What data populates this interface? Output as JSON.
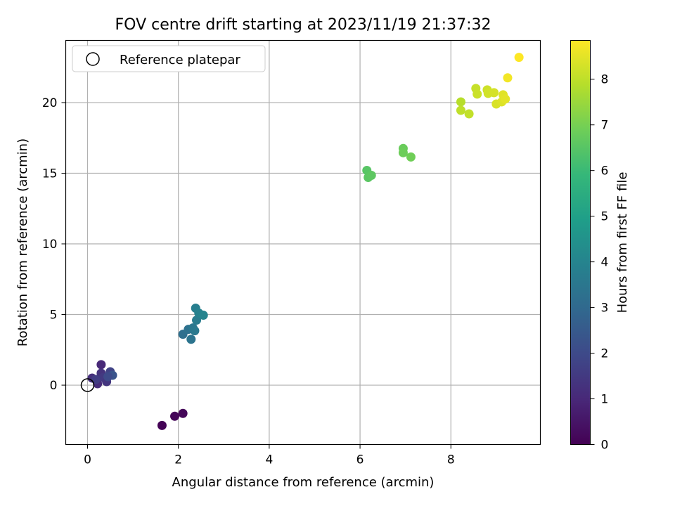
{
  "chart_data": {
    "type": "scatter",
    "title": "FOV centre drift starting at 2023/11/19 21:37:32",
    "xlabel": "Angular distance from reference (arcmin)",
    "ylabel": "Rotation from reference (arcmin)",
    "xlim": [
      -0.48,
      9.97
    ],
    "ylim": [
      -4.2,
      24.4
    ],
    "xticks": [
      0,
      2,
      4,
      6,
      8
    ],
    "yticks": [
      0,
      5,
      10,
      15,
      20
    ],
    "grid": true,
    "legend": {
      "position": "top-left",
      "entries": [
        "Reference platepar"
      ]
    },
    "reference_point": {
      "x": 0,
      "y": 0,
      "label": "Reference platepar"
    },
    "colorbar": {
      "label": "Hours from first FF file",
      "colormap": "viridis",
      "range": [
        0,
        8.85
      ],
      "ticks": [
        0,
        1,
        2,
        3,
        4,
        5,
        6,
        7,
        8
      ]
    },
    "points": [
      {
        "x": 1.64,
        "y": -2.85,
        "c": 0.05
      },
      {
        "x": 1.92,
        "y": -2.2,
        "c": 0.1
      },
      {
        "x": 2.1,
        "y": -2.0,
        "c": 0.15
      },
      {
        "x": 0.3,
        "y": 1.45,
        "c": 1.0
      },
      {
        "x": 0.1,
        "y": 0.5,
        "c": 1.2
      },
      {
        "x": 0.22,
        "y": 0.1,
        "c": 1.1
      },
      {
        "x": 0.3,
        "y": 0.85,
        "c": 1.3
      },
      {
        "x": 0.35,
        "y": 0.55,
        "c": 1.5
      },
      {
        "x": 0.42,
        "y": 0.25,
        "c": 1.4
      },
      {
        "x": 0.5,
        "y": 0.95,
        "c": 1.8
      },
      {
        "x": 0.55,
        "y": 0.7,
        "c": 2.3
      },
      {
        "x": 0.18,
        "y": 0.4,
        "c": 1.6
      },
      {
        "x": 0.45,
        "y": 0.6,
        "c": 2.0
      },
      {
        "x": 2.1,
        "y": 3.6,
        "c": 3.2
      },
      {
        "x": 2.22,
        "y": 3.95,
        "c": 3.3
      },
      {
        "x": 2.28,
        "y": 3.25,
        "c": 3.4
      },
      {
        "x": 2.32,
        "y": 4.05,
        "c": 3.5
      },
      {
        "x": 2.36,
        "y": 3.85,
        "c": 3.6
      },
      {
        "x": 2.4,
        "y": 4.6,
        "c": 3.7
      },
      {
        "x": 2.38,
        "y": 5.45,
        "c": 3.8
      },
      {
        "x": 2.45,
        "y": 5.1,
        "c": 3.9
      },
      {
        "x": 2.55,
        "y": 4.95,
        "c": 4.0
      },
      {
        "x": 6.15,
        "y": 15.2,
        "c": 6.5
      },
      {
        "x": 6.18,
        "y": 14.7,
        "c": 6.55
      },
      {
        "x": 6.25,
        "y": 14.85,
        "c": 6.6
      },
      {
        "x": 6.95,
        "y": 16.75,
        "c": 6.8
      },
      {
        "x": 6.95,
        "y": 16.45,
        "c": 6.85
      },
      {
        "x": 7.12,
        "y": 16.15,
        "c": 6.9
      },
      {
        "x": 8.22,
        "y": 20.05,
        "c": 7.9
      },
      {
        "x": 8.22,
        "y": 19.45,
        "c": 8.0
      },
      {
        "x": 8.4,
        "y": 19.2,
        "c": 8.05
      },
      {
        "x": 8.55,
        "y": 21.0,
        "c": 8.1
      },
      {
        "x": 8.58,
        "y": 20.6,
        "c": 8.15
      },
      {
        "x": 8.8,
        "y": 20.9,
        "c": 8.2
      },
      {
        "x": 8.82,
        "y": 20.65,
        "c": 8.25
      },
      {
        "x": 8.95,
        "y": 20.7,
        "c": 8.3
      },
      {
        "x": 9.0,
        "y": 19.9,
        "c": 8.35
      },
      {
        "x": 9.12,
        "y": 20.05,
        "c": 8.4
      },
      {
        "x": 9.15,
        "y": 20.55,
        "c": 8.45
      },
      {
        "x": 9.2,
        "y": 20.25,
        "c": 8.5
      },
      {
        "x": 9.25,
        "y": 21.75,
        "c": 8.7
      },
      {
        "x": 9.5,
        "y": 23.2,
        "c": 8.85
      }
    ]
  }
}
